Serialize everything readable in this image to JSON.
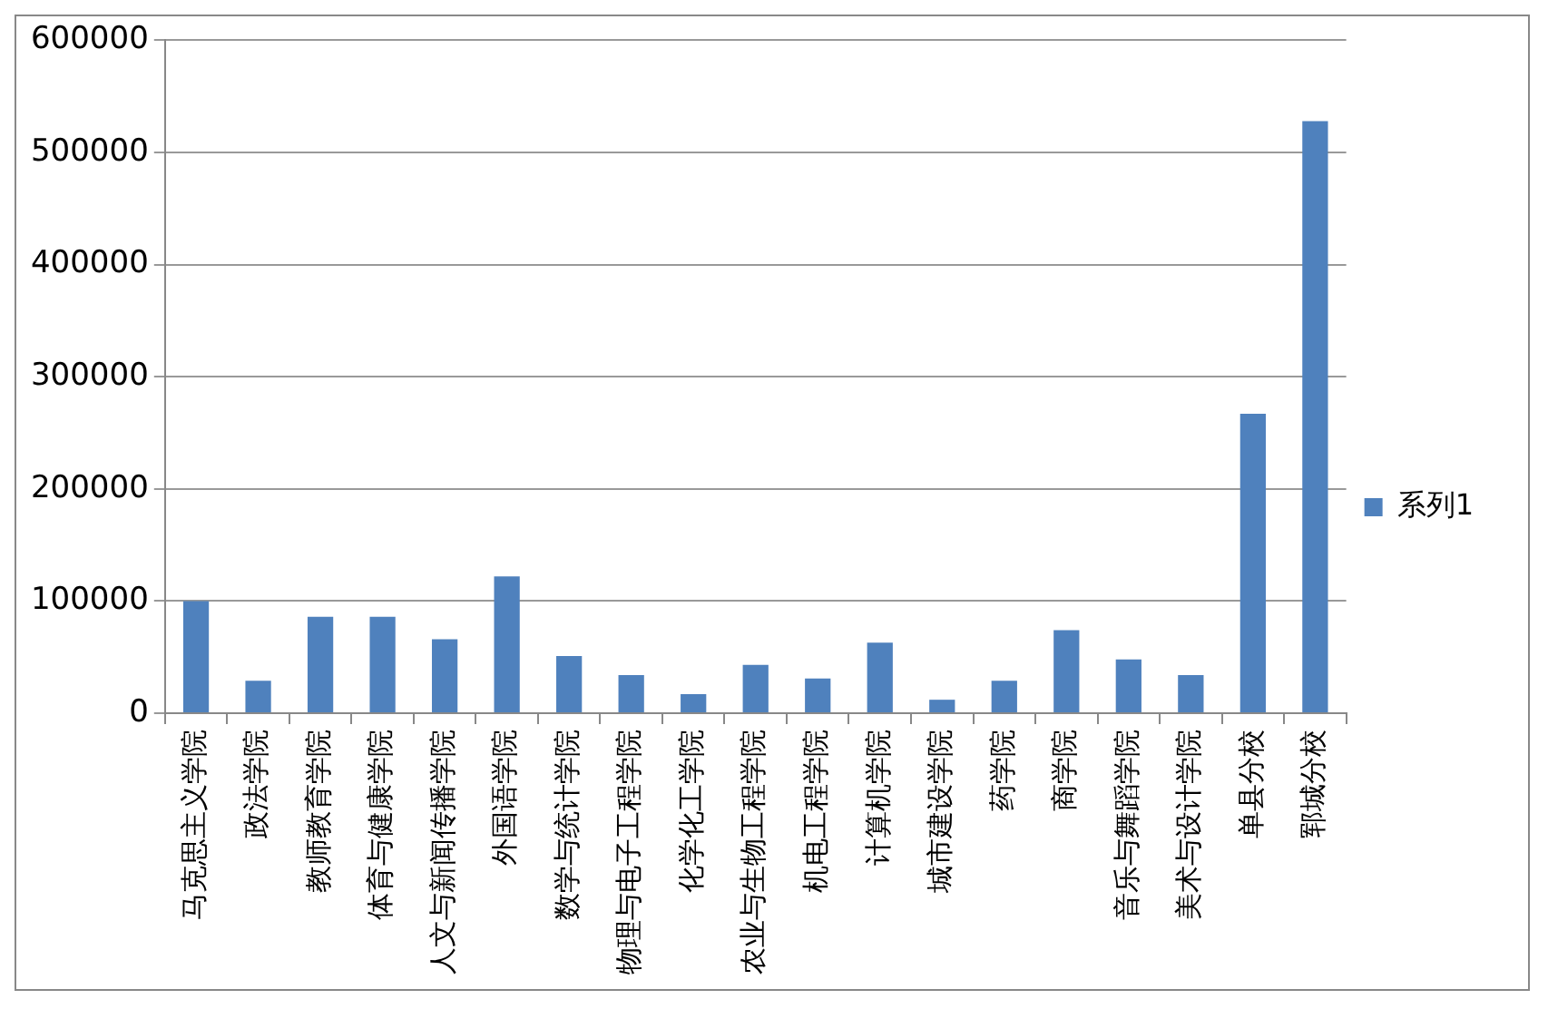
{
  "chart_data": {
    "type": "bar",
    "categories": [
      "马克思主义学院",
      "政法学院",
      "教师教育学院",
      "体育与健康学院",
      "人文与新闻传播学院",
      "外国语学院",
      "数学与统计学院",
      "物理与电子工程学院",
      "化学化工学院",
      "农业与生物工程学院",
      "机电工程学院",
      "计算机学院",
      "城市建设学院",
      "药学院",
      "商学院",
      "音乐与舞蹈学院",
      "美术与设计学院",
      "单县分校",
      "郓城分校"
    ],
    "series": [
      {
        "name": "系列1",
        "color": "#4f81bd",
        "values": [
          100000,
          29000,
          86000,
          86000,
          66000,
          122000,
          51000,
          34000,
          17000,
          43000,
          31000,
          63000,
          12000,
          29000,
          74000,
          48000,
          34000,
          267000,
          528000
        ]
      }
    ],
    "ylim": [
      0,
      600000
    ],
    "yticks": [
      0,
      100000,
      200000,
      300000,
      400000,
      500000,
      600000
    ],
    "grid": "y",
    "legend": "right"
  }
}
